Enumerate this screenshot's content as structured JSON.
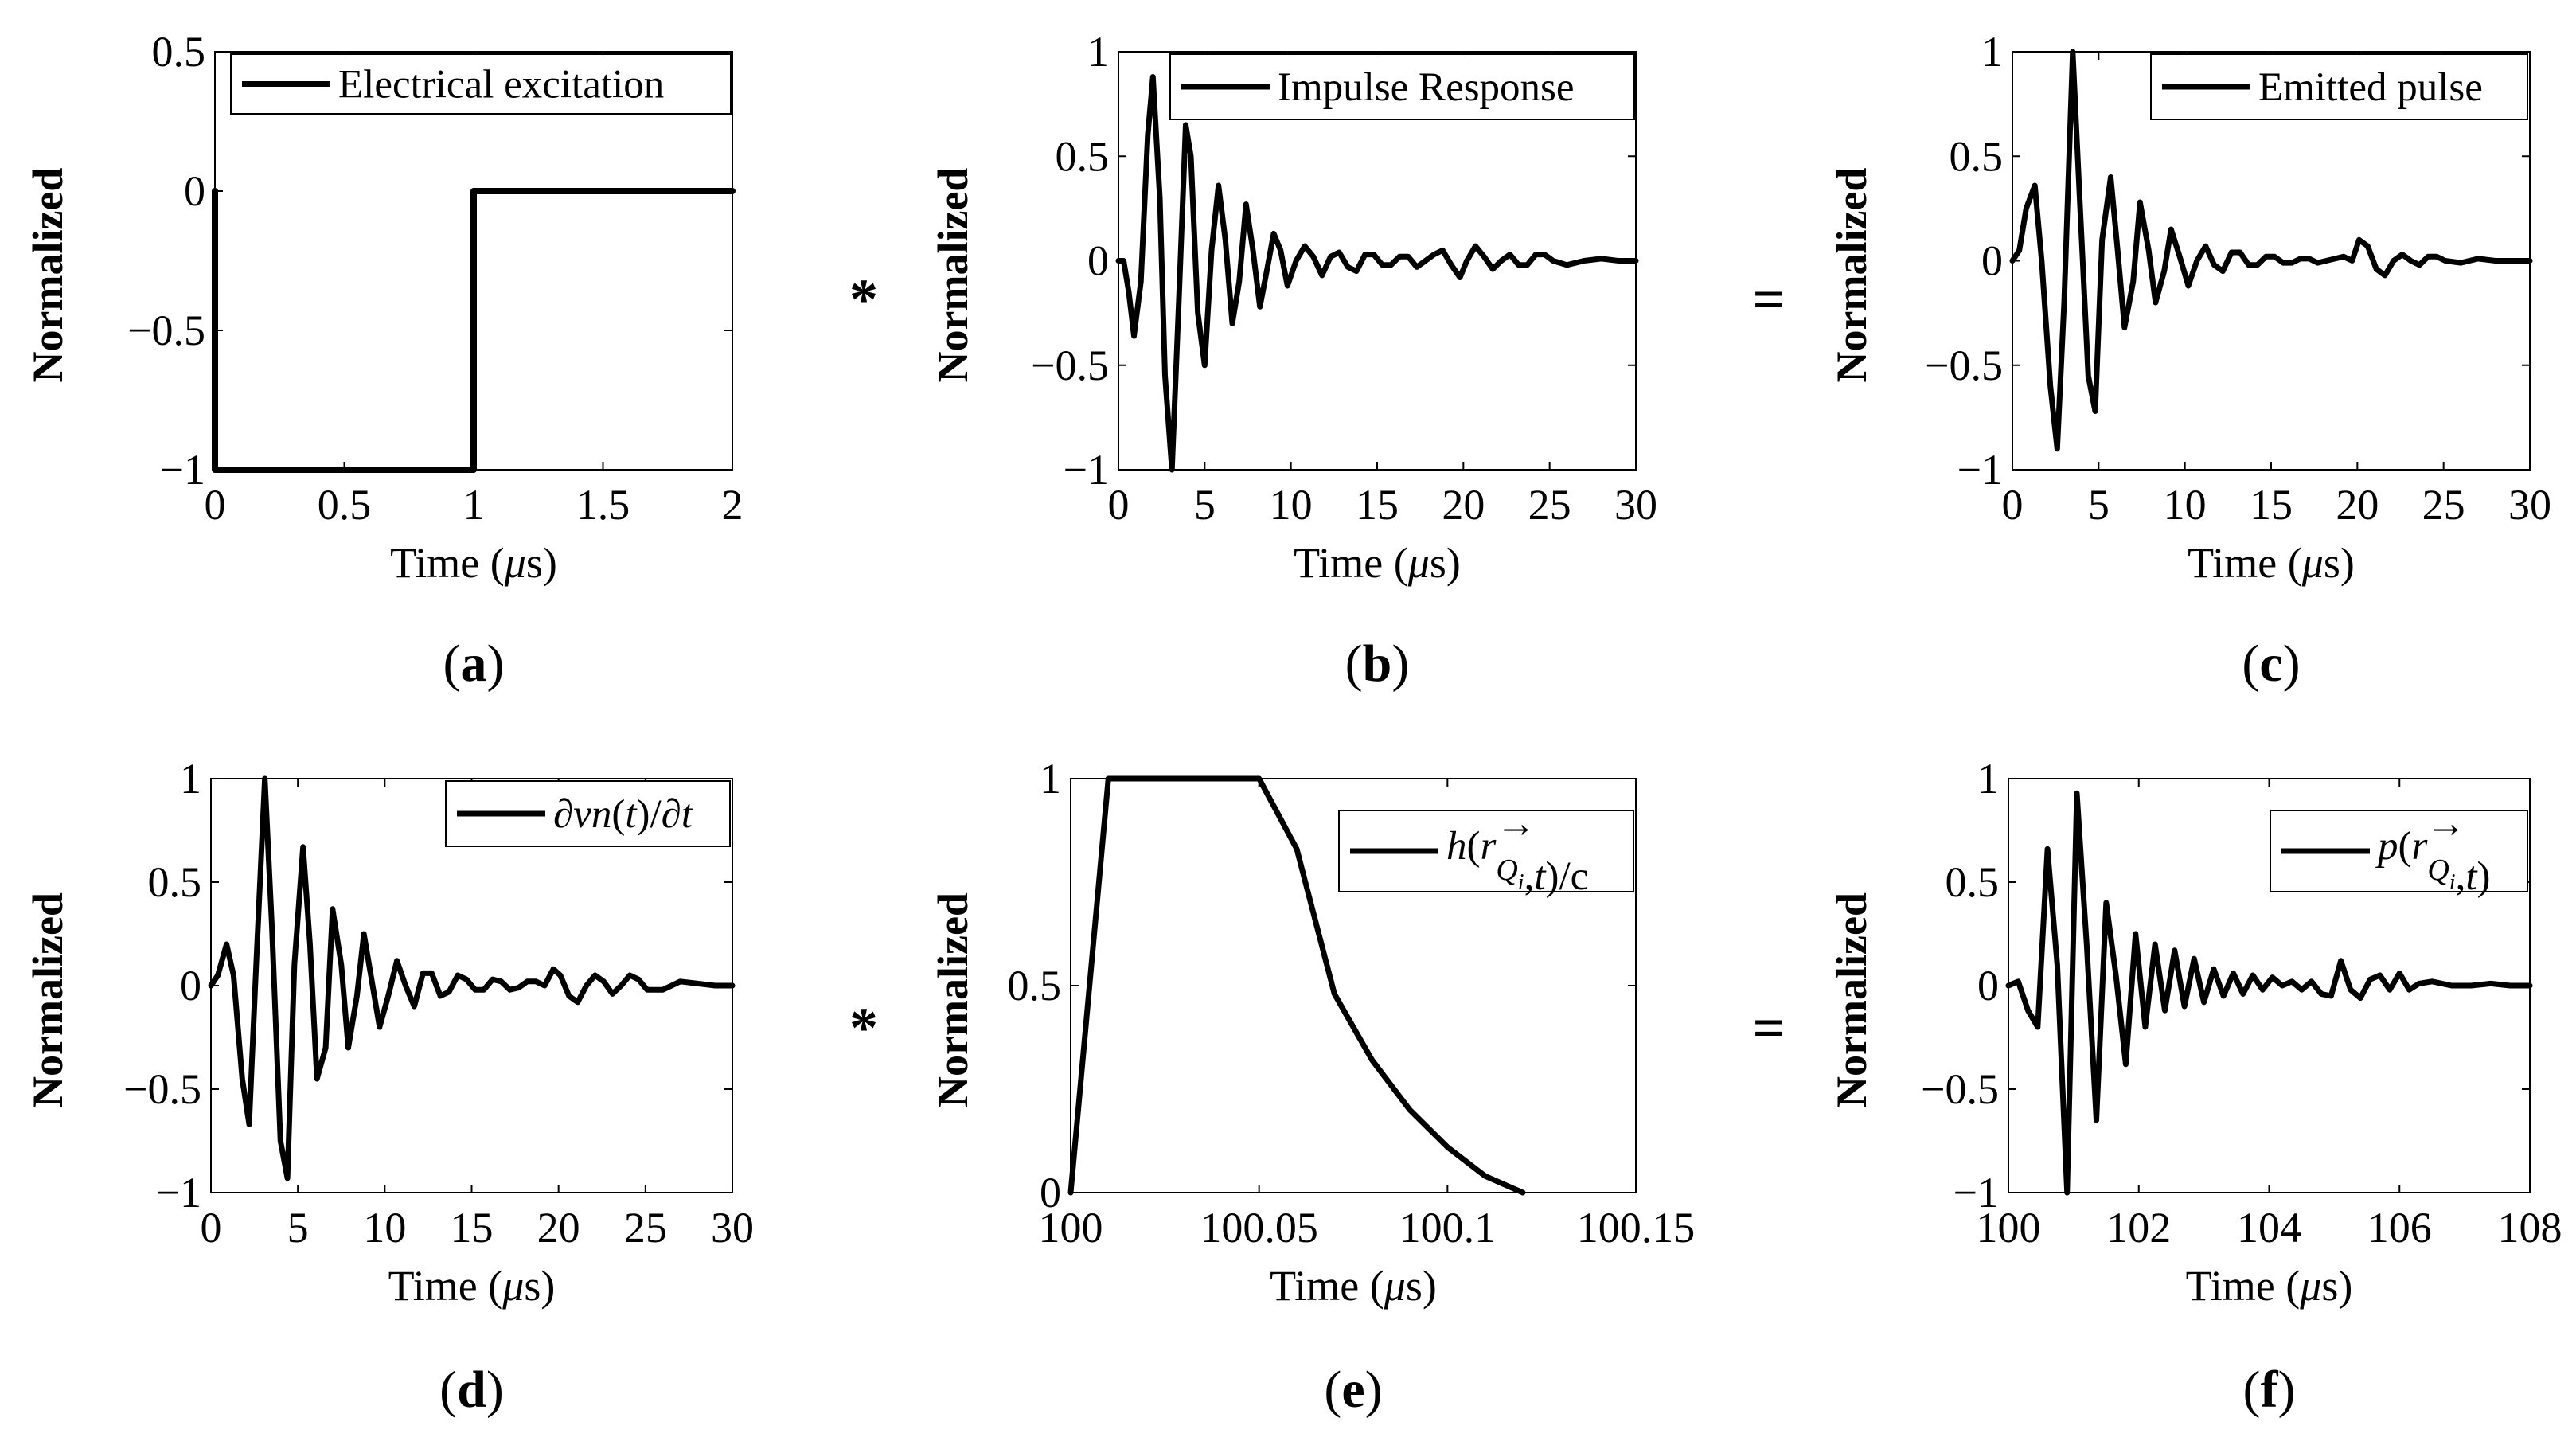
{
  "figure": {
    "y_axis_label": "Normalized",
    "x_axis_label_prefix": "Time (",
    "x_axis_label_unit": "μs",
    "x_axis_label_suffix": ")",
    "operators": [
      "*",
      "=",
      "*",
      "="
    ]
  },
  "chart_data": [
    {
      "id": "a",
      "type": "line",
      "caption": "(a)",
      "legend": "Electrical excitation",
      "xlim": [
        0,
        2
      ],
      "ylim": [
        -1,
        0.5
      ],
      "xticks": [
        0,
        0.5,
        1,
        1.5,
        2
      ],
      "xtick_labels": [
        "0",
        "0.5",
        "1",
        "1.5",
        "2"
      ],
      "yticks": [
        -1,
        -0.5,
        0,
        0.5
      ],
      "ytick_labels": [
        "−1",
        "−0.5",
        "0",
        "0.5"
      ],
      "x": [
        0,
        0,
        1,
        1,
        2
      ],
      "y": [
        0,
        -1,
        -1,
        0,
        0
      ]
    },
    {
      "id": "b",
      "type": "line",
      "caption": "(b)",
      "legend": "Impulse Response",
      "xlim": [
        0,
        30
      ],
      "ylim": [
        -1,
        1
      ],
      "xticks": [
        0,
        5,
        10,
        15,
        20,
        25,
        30
      ],
      "xtick_labels": [
        "0",
        "5",
        "10",
        "15",
        "20",
        "25",
        "30"
      ],
      "yticks": [
        -1,
        -0.5,
        0,
        0.5,
        1
      ],
      "ytick_labels": [
        "−1",
        "−0.5",
        "0",
        "0.5",
        "1"
      ],
      "x": [
        0,
        0.3,
        0.6,
        0.9,
        1.3,
        1.7,
        2.0,
        2.4,
        2.7,
        3.1,
        3.5,
        3.9,
        4.2,
        4.6,
        5.0,
        5.4,
        5.8,
        6.2,
        6.6,
        7.0,
        7.4,
        7.8,
        8.2,
        8.6,
        9.0,
        9.4,
        9.8,
        10.3,
        10.8,
        11.3,
        11.8,
        12.3,
        12.8,
        13.3,
        13.8,
        14.3,
        14.8,
        15.3,
        15.8,
        16.3,
        16.8,
        17.3,
        17.8,
        18.3,
        18.8,
        19.3,
        19.8,
        20.2,
        20.7,
        21.2,
        21.7,
        22.2,
        22.7,
        23.2,
        23.7,
        24.2,
        24.7,
        25.2,
        26,
        27,
        28,
        29,
        30
      ],
      "y": [
        0,
        0,
        -0.15,
        -0.36,
        -0.1,
        0.6,
        0.88,
        0.3,
        -0.55,
        -1.0,
        -0.2,
        0.65,
        0.5,
        -0.25,
        -0.5,
        0.05,
        0.36,
        0.1,
        -0.3,
        -0.1,
        0.27,
        0.05,
        -0.22,
        -0.05,
        0.13,
        0.05,
        -0.12,
        0,
        0.07,
        0.02,
        -0.07,
        0.02,
        0.04,
        -0.03,
        -0.05,
        0.03,
        0.03,
        -0.02,
        -0.02,
        0.02,
        0.02,
        -0.03,
        0,
        0.03,
        0.05,
        -0.02,
        -0.08,
        0,
        0.07,
        0.02,
        -0.04,
        0,
        0.03,
        -0.02,
        -0.02,
        0.03,
        0.03,
        0,
        -0.02,
        0,
        0.01,
        0,
        0
      ]
    },
    {
      "id": "c",
      "type": "line",
      "caption": "(c)",
      "legend": "Emitted pulse",
      "xlim": [
        0,
        30
      ],
      "ylim": [
        -1,
        1
      ],
      "xticks": [
        0,
        5,
        10,
        15,
        20,
        25,
        30
      ],
      "xtick_labels": [
        "0",
        "5",
        "10",
        "15",
        "20",
        "25",
        "30"
      ],
      "yticks": [
        -1,
        -0.5,
        0,
        0.5,
        1
      ],
      "ytick_labels": [
        "−1",
        "−0.5",
        "0",
        "0.5",
        "1"
      ],
      "x": [
        0,
        0.4,
        0.8,
        1.3,
        1.7,
        2.2,
        2.6,
        3.0,
        3.5,
        3.9,
        4.4,
        4.8,
        5.2,
        5.7,
        6.1,
        6.5,
        7.0,
        7.4,
        7.9,
        8.3,
        8.8,
        9.2,
        9.7,
        10.2,
        10.7,
        11.2,
        11.7,
        12.2,
        12.7,
        13.2,
        13.7,
        14.2,
        14.7,
        15.2,
        15.7,
        16.2,
        16.7,
        17.2,
        17.7,
        18.2,
        18.7,
        19.2,
        19.7,
        20.1,
        20.6,
        21.1,
        21.6,
        22.1,
        22.6,
        23.1,
        23.6,
        24.1,
        24.6,
        25.1,
        26,
        27,
        28,
        29,
        30
      ],
      "y": [
        0,
        0.05,
        0.25,
        0.36,
        0,
        -0.6,
        -0.9,
        -0.2,
        1.0,
        0.3,
        -0.55,
        -0.72,
        0.1,
        0.4,
        0.05,
        -0.32,
        -0.1,
        0.28,
        0.05,
        -0.2,
        -0.05,
        0.15,
        0.02,
        -0.12,
        0,
        0.07,
        -0.02,
        -0.05,
        0.04,
        0.04,
        -0.02,
        -0.02,
        0.02,
        0.02,
        -0.01,
        -0.01,
        0.01,
        0.01,
        -0.01,
        0,
        0.01,
        0.02,
        0,
        0.1,
        0.07,
        -0.04,
        -0.07,
        0,
        0.03,
        0,
        -0.02,
        0.02,
        0.02,
        0,
        -0.01,
        0.01,
        0,
        0,
        0
      ]
    },
    {
      "id": "d",
      "type": "line",
      "caption": "(d)",
      "legend": "∂vn(t)/∂t",
      "xlim": [
        0,
        30
      ],
      "ylim": [
        -1,
        1
      ],
      "xticks": [
        0,
        5,
        10,
        15,
        20,
        25,
        30
      ],
      "xtick_labels": [
        "0",
        "5",
        "10",
        "15",
        "20",
        "25",
        "30"
      ],
      "yticks": [
        -1,
        -0.5,
        0,
        0.5,
        1
      ],
      "ytick_labels": [
        "−1",
        "−0.5",
        "0",
        "0.5",
        "1"
      ],
      "x": [
        0,
        0.4,
        0.9,
        1.3,
        1.8,
        2.2,
        2.6,
        3.1,
        3.5,
        4.0,
        4.4,
        4.8,
        5.3,
        5.7,
        6.1,
        6.6,
        7.0,
        7.5,
        7.9,
        8.4,
        8.8,
        9.3,
        9.7,
        10.2,
        10.7,
        11.2,
        11.7,
        12.2,
        12.7,
        13.2,
        13.7,
        14.2,
        14.7,
        15.2,
        15.7,
        16.2,
        16.7,
        17.2,
        17.7,
        18.2,
        18.7,
        19.2,
        19.7,
        20.1,
        20.6,
        21.1,
        21.6,
        22.1,
        22.6,
        23.1,
        23.6,
        24.1,
        24.6,
        25.1,
        26,
        27,
        28,
        29,
        30
      ],
      "y": [
        0,
        0.05,
        0.2,
        0.05,
        -0.45,
        -0.67,
        0.1,
        1.0,
        0.3,
        -0.75,
        -0.93,
        0.1,
        0.67,
        0.2,
        -0.45,
        -0.3,
        0.37,
        0.1,
        -0.3,
        -0.05,
        0.25,
        0,
        -0.2,
        -0.05,
        0.12,
        0,
        -0.1,
        0.06,
        0.06,
        -0.05,
        -0.03,
        0.05,
        0.03,
        -0.02,
        -0.02,
        0.03,
        0.02,
        -0.02,
        -0.01,
        0.02,
        0.02,
        0,
        0.08,
        0.05,
        -0.05,
        -0.08,
        0,
        0.05,
        0.02,
        -0.04,
        0,
        0.05,
        0.03,
        -0.02,
        -0.02,
        0.02,
        0.01,
        0,
        0
      ]
    },
    {
      "id": "e",
      "type": "line",
      "caption": "(e)",
      "legend": "h(r_Qi→, t)/c",
      "xlim": [
        100,
        100.15
      ],
      "ylim": [
        0,
        1
      ],
      "xticks": [
        100,
        100.05,
        100.1,
        100.15
      ],
      "xtick_labels": [
        "100",
        "100.05",
        "100.1",
        "100.15"
      ],
      "yticks": [
        0,
        0.5,
        1
      ],
      "ytick_labels": [
        "0",
        "0.5",
        "1"
      ],
      "x": [
        100,
        100.01,
        100.02,
        100.03,
        100.04,
        100.05,
        100.06,
        100.07,
        100.08,
        100.09,
        100.1,
        100.11,
        100.12
      ],
      "y": [
        0,
        1,
        1,
        1,
        1,
        1,
        0.83,
        0.48,
        0.32,
        0.2,
        0.11,
        0.04,
        0
      ]
    },
    {
      "id": "f",
      "type": "line",
      "caption": "(f)",
      "legend": "p(r_Qi→, t)",
      "xlim": [
        100,
        108
      ],
      "ylim": [
        -1,
        1
      ],
      "xticks": [
        100,
        102,
        104,
        106,
        108
      ],
      "xtick_labels": [
        "100",
        "102",
        "104",
        "106",
        "108"
      ],
      "yticks": [
        -1,
        -0.5,
        0,
        0.5,
        1
      ],
      "ytick_labels": [
        "−1",
        "−0.5",
        "0",
        "0.5",
        "1"
      ],
      "x": [
        100,
        100.15,
        100.3,
        100.45,
        100.6,
        100.75,
        100.9,
        101.05,
        101.2,
        101.35,
        101.5,
        101.65,
        101.8,
        101.95,
        102.1,
        102.25,
        102.4,
        102.55,
        102.7,
        102.85,
        103.0,
        103.15,
        103.3,
        103.45,
        103.6,
        103.75,
        103.9,
        104.05,
        104.2,
        104.35,
        104.5,
        104.65,
        104.8,
        104.95,
        105.1,
        105.25,
        105.4,
        105.55,
        105.7,
        105.85,
        106.0,
        106.15,
        106.3,
        106.5,
        106.8,
        107.1,
        107.4,
        107.7,
        108
      ],
      "y": [
        0,
        0.02,
        -0.12,
        -0.2,
        0.66,
        0.1,
        -1.0,
        0.93,
        0.2,
        -0.65,
        0.4,
        0.05,
        -0.38,
        0.25,
        -0.2,
        0.2,
        -0.12,
        0.17,
        -0.1,
        0.13,
        -0.08,
        0.08,
        -0.05,
        0.06,
        -0.04,
        0.05,
        -0.02,
        0.04,
        0,
        0.02,
        -0.02,
        0.02,
        -0.04,
        -0.05,
        0.12,
        -0.02,
        -0.06,
        0.03,
        0.05,
        -0.02,
        0.06,
        -0.02,
        0.01,
        0.02,
        0,
        0,
        0.01,
        0,
        0
      ]
    }
  ]
}
